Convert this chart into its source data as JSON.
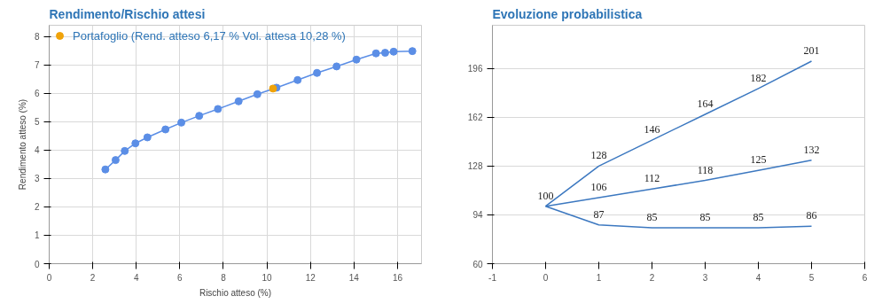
{
  "chart_data": [
    {
      "type": "scatter",
      "title": "Rendimento/Rischio  attesi",
      "xlabel": "Rischio atteso (%)",
      "ylabel": "Rendimento atteso (%)",
      "xlim": [
        0,
        17.1
      ],
      "xticks": [
        0,
        2,
        4,
        6,
        8,
        10,
        12,
        14,
        16
      ],
      "ylim": [
        0,
        8.4
      ],
      "yticks": [
        0,
        1,
        2,
        3,
        4,
        5,
        6,
        7,
        8
      ],
      "grid": true,
      "marker": "circle",
      "legend": "top left",
      "series": [
        {
          "type": "line",
          "color": "#5b8ee6",
          "x": [
            2.58,
            3.05,
            3.47,
            3.96,
            4.51,
            5.34,
            6.07,
            6.89,
            7.75,
            8.7,
            9.56,
            10.44,
            11.41,
            12.3,
            13.2,
            14.11,
            15.01,
            15.43,
            15.82,
            16.68
          ],
          "values": [
            3.32,
            3.65,
            3.97,
            4.24,
            4.45,
            4.73,
            4.97,
            5.21,
            5.45,
            5.72,
            5.97,
            6.2,
            6.47,
            6.72,
            6.95,
            7.19,
            7.41,
            7.43,
            7.47,
            7.49
          ]
        },
        {
          "type": "scatter",
          "name": "Portafoglio (Rend. atteso 6,17 % Vol. attesa 10,28 %)",
          "color": "#f0a30a",
          "x": [
            10.28
          ],
          "values": [
            6.17
          ]
        }
      ]
    },
    {
      "type": "line",
      "title": "Evoluzione probabilistica",
      "xlim": [
        -1,
        6
      ],
      "xticks": [
        -1,
        0,
        1,
        2,
        3,
        4,
        5,
        6
      ],
      "ylim": [
        60,
        226
      ],
      "yticks": [
        60,
        94,
        128,
        162,
        196
      ],
      "grid": "y",
      "marker": "none",
      "x": [
        0,
        1,
        2,
        3,
        4,
        5
      ],
      "series": [
        {
          "color": "#3c78c0",
          "values": [
            100,
            128,
            146,
            164,
            182,
            201
          ],
          "value_labels": [
            "100",
            "128",
            "146",
            "164",
            "182",
            "201"
          ]
        },
        {
          "color": "#3c78c0",
          "values": [
            100,
            106,
            112,
            118,
            125,
            132
          ],
          "value_labels": [
            null,
            "106",
            "112",
            "118",
            "125",
            "132"
          ]
        },
        {
          "color": "#3c78c0",
          "values": [
            100,
            87,
            85,
            85,
            85,
            86
          ],
          "value_labels": [
            null,
            "87",
            "85",
            "85",
            "85",
            "86"
          ]
        }
      ]
    }
  ]
}
